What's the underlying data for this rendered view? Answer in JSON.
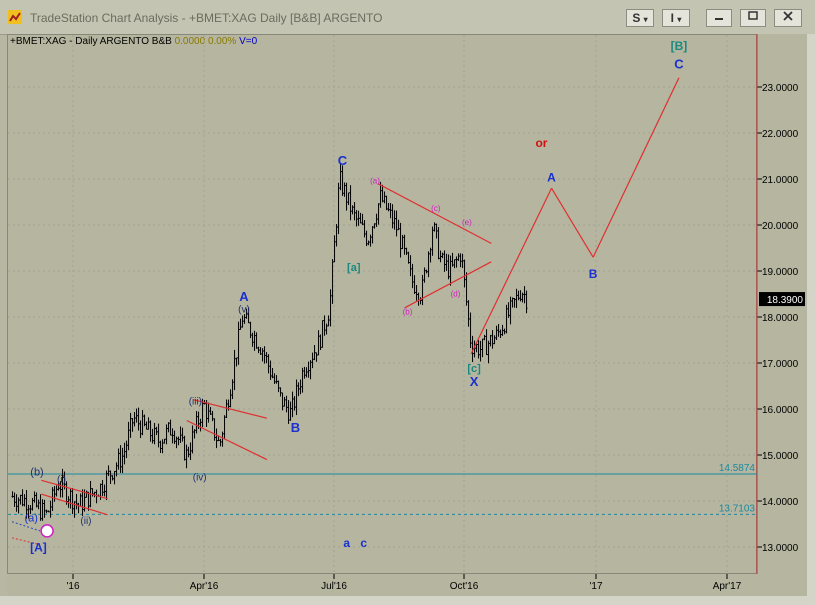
{
  "window": {
    "title": "TradeStation Chart Analysis - +BMET:XAG Daily [B&B] ARGENTO",
    "buttons": {
      "s_label": "S",
      "i_label": "I"
    }
  },
  "chart_info": {
    "symbol": "+BMET:XAG - Daily  ARGENTO  B&B",
    "value1": "0.0000",
    "value2": "0.00%",
    "volume": "V=0"
  },
  "price_axis": {
    "ticks": [
      "23.0000",
      "22.0000",
      "21.0000",
      "20.0000",
      "19.0000",
      "18.0000",
      "17.0000",
      "16.0000",
      "15.0000",
      "14.0000",
      "13.0000"
    ],
    "last_price": "18.3900",
    "levels": [
      {
        "label": "14.5874",
        "value": 14.5874,
        "style": "solid",
        "color": "#1a8aa0"
      },
      {
        "label": "13.7103",
        "value": 13.7103,
        "style": "dashed",
        "color": "#1a8aa0"
      }
    ]
  },
  "time_axis": {
    "ticks": [
      "'16",
      "Apr'16",
      "Jul'16",
      "Oct'16",
      "'17",
      "Apr'17"
    ]
  },
  "chart_data": {
    "type": "ohlc",
    "symbol": "+BMET:XAG",
    "interval": "Daily",
    "ylim": [
      12.5,
      24.2
    ],
    "grid": true,
    "series_path_close": [
      [
        "2015-11-20",
        14.1
      ],
      [
        "2015-12-01",
        14.0
      ],
      [
        "2015-12-14",
        13.7
      ],
      [
        "2015-12-22",
        14.4
      ],
      [
        "2016-01-05",
        13.9
      ],
      [
        "2016-01-20",
        14.3
      ],
      [
        "2016-02-05",
        15.0
      ],
      [
        "2016-02-12",
        15.8
      ],
      [
        "2016-03-01",
        15.3
      ],
      [
        "2016-03-10",
        15.6
      ],
      [
        "2016-03-20",
        15.0
      ],
      [
        "2016-04-01",
        16.1
      ],
      [
        "2016-04-12",
        15.2
      ],
      [
        "2016-04-20",
        16.6
      ],
      [
        "2016-04-28",
        18.0
      ],
      [
        "2016-05-12",
        17.3
      ],
      [
        "2016-05-25",
        16.2
      ],
      [
        "2016-06-01",
        15.9
      ],
      [
        "2016-06-10",
        16.9
      ],
      [
        "2016-06-20",
        17.4
      ],
      [
        "2016-06-28",
        18.2
      ],
      [
        "2016-07-05",
        21.0
      ],
      [
        "2016-07-15",
        20.2
      ],
      [
        "2016-07-25",
        19.7
      ],
      [
        "2016-08-03",
        20.6
      ],
      [
        "2016-08-15",
        19.9
      ],
      [
        "2016-08-25",
        18.8
      ],
      [
        "2016-09-01",
        18.5
      ],
      [
        "2016-09-09",
        20.0
      ],
      [
        "2016-09-15",
        19.2
      ],
      [
        "2016-09-22",
        19.0
      ],
      [
        "2016-09-29",
        19.4
      ],
      [
        "2016-10-06",
        17.4
      ],
      [
        "2016-10-13",
        17.3
      ],
      [
        "2016-10-24",
        17.6
      ],
      [
        "2016-11-02",
        18.1
      ],
      [
        "2016-11-10",
        18.6
      ],
      [
        "2016-11-14",
        18.39
      ]
    ],
    "projection": [
      [
        "2016-10-06",
        17.2
      ],
      [
        "2016-12-01",
        20.8
      ],
      [
        "2016-12-30",
        19.3
      ],
      [
        "2017-02-27",
        23.2
      ]
    ],
    "wave_labels": [
      "[A]",
      "(a)",
      "(b)",
      "(c)",
      "(i)",
      "(ii)",
      "(iii)",
      "(iv)",
      "(v)",
      "A",
      "B",
      "C",
      "[a]",
      "(a)",
      "(b)",
      "(c)",
      "(d)",
      "(e)",
      "[c]",
      "X",
      "A",
      "B",
      "[B]",
      "C",
      "or",
      "a",
      "c"
    ]
  }
}
